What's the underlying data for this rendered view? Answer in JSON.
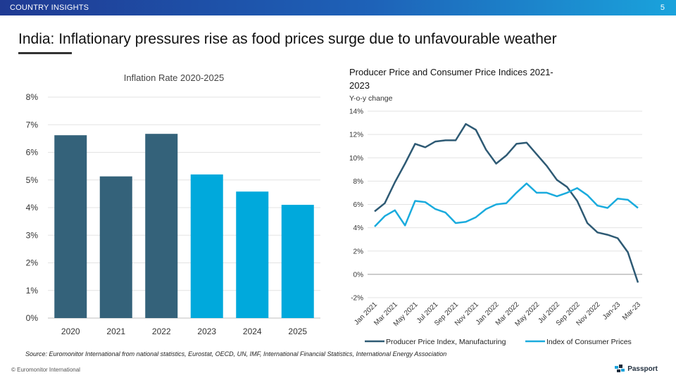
{
  "header": {
    "section": "COUNTRY INSIGHTS",
    "page_number": "5",
    "bar_colors": [
      "#1f3a93",
      "#1aa3dc"
    ]
  },
  "title": "India: Inflationary pressures rise as food prices surge due to unfavourable weather",
  "footer": {
    "source": "Source: Euromonitor International from national statistics, Eurostat, OECD, UN, IMF, International Financial Statistics, International Energy Association",
    "copyright": "© Euromonitor International",
    "brand": "Passport"
  },
  "chart_data": [
    {
      "type": "bar",
      "title": "Inflation Rate 2020-2025",
      "categories": [
        "2020",
        "2021",
        "2022",
        "2023",
        "2024",
        "2025"
      ],
      "values": [
        6.62,
        5.13,
        6.67,
        5.2,
        4.58,
        4.1
      ],
      "colors": [
        "#34627a",
        "#34627a",
        "#34627a",
        "#00a9dc",
        "#00a9dc",
        "#00a9dc"
      ],
      "ylim": [
        0,
        8
      ],
      "yticks": [
        "0%",
        "1%",
        "2%",
        "3%",
        "4%",
        "5%",
        "6%",
        "7%",
        "8%"
      ],
      "grid": true
    },
    {
      "type": "line",
      "title": "Producer Price and Consumer Price Indices 2021-2023",
      "ylabel": "Y-o-y change",
      "ylim": [
        -2,
        14
      ],
      "yticks": [
        "-2%",
        "0%",
        "2%",
        "4%",
        "6%",
        "8%",
        "10%",
        "12%",
        "14%"
      ],
      "x": [
        "Jan 2021",
        "Feb 2021",
        "Mar 2021",
        "Apr 2021",
        "May 2021",
        "Jun 2021",
        "Jul 2021",
        "Aug 2021",
        "Sep 2021",
        "Oct 2021",
        "Nov 2021",
        "Dec 2021",
        "Jan 2022",
        "Feb 2022",
        "Mar 2022",
        "Apr 2022",
        "May 2022",
        "Jun 2022",
        "Jul 2022",
        "Aug 2022",
        "Sep 2022",
        "Oct 2022",
        "Nov 2022",
        "Dec 2022",
        "Jan 2023",
        "Feb 2023",
        "Mar 2023"
      ],
      "xticks": [
        "Jan 2021",
        "Mar 2021",
        "May 2021",
        "Jul 2021",
        "Sep 2021",
        "Nov 2021",
        "Jan 2022",
        "Mar 2022",
        "May 2022",
        "Jul 2022",
        "Sep 2022",
        "Nov 2022",
        "Jan-23",
        "Mar-23"
      ],
      "series": [
        {
          "name": "Producer Price Index, Manufacturing",
          "color": "#2e5a74",
          "values": [
            5.4,
            6.1,
            7.9,
            9.5,
            11.2,
            10.9,
            11.4,
            11.5,
            11.5,
            12.9,
            12.4,
            10.7,
            9.5,
            10.2,
            11.2,
            11.3,
            10.3,
            9.3,
            8.1,
            7.5,
            6.3,
            4.4,
            3.6,
            3.4,
            3.1,
            1.9,
            -0.7
          ]
        },
        {
          "name": "Index of Consumer Prices",
          "color": "#1aabdd",
          "values": [
            4.1,
            5.0,
            5.5,
            4.2,
            6.3,
            6.2,
            5.6,
            5.3,
            4.4,
            4.5,
            4.9,
            5.6,
            6.0,
            6.1,
            7.0,
            7.8,
            7.0,
            7.0,
            6.7,
            7.0,
            7.4,
            6.8,
            5.9,
            5.7,
            6.5,
            6.4,
            5.7
          ]
        }
      ],
      "legend": "bottom",
      "grid": true
    }
  ]
}
